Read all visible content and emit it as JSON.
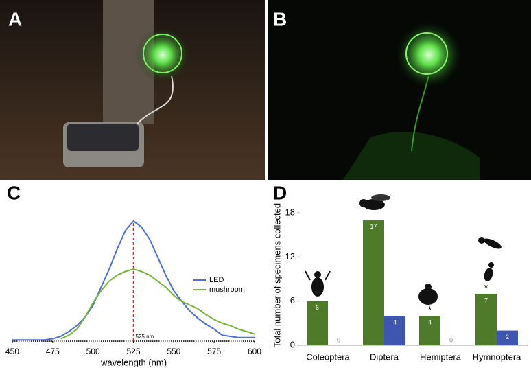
{
  "panels": [
    "A",
    "B",
    "C",
    "D"
  ],
  "chart_data": [
    {
      "type": "line",
      "x_label": "wavelength (nm)",
      "x": [
        450,
        455,
        460,
        465,
        470,
        475,
        480,
        485,
        490,
        495,
        500,
        505,
        510,
        515,
        520,
        525,
        530,
        535,
        540,
        545,
        550,
        555,
        560,
        565,
        570,
        575,
        580,
        585,
        590,
        595,
        600
      ],
      "series": [
        {
          "name": "LED",
          "color": "#4a6fd8",
          "values": [
            0.01,
            0.01,
            0.01,
            0.01,
            0.01,
            0.02,
            0.04,
            0.08,
            0.13,
            0.2,
            0.3,
            0.45,
            0.6,
            0.77,
            0.92,
            1.0,
            0.95,
            0.85,
            0.7,
            0.55,
            0.42,
            0.33,
            0.25,
            0.19,
            0.14,
            0.1,
            0.05,
            0.04,
            0.03,
            0.03,
            0.03
          ]
        },
        {
          "name": "mushroom",
          "color": "#74b63c",
          "values": [
            null,
            null,
            null,
            null,
            null,
            null,
            0.02,
            0.05,
            0.1,
            0.2,
            0.32,
            0.42,
            0.5,
            0.55,
            0.58,
            0.6,
            0.58,
            0.55,
            0.5,
            0.45,
            0.38,
            0.33,
            0.3,
            0.27,
            0.22,
            0.18,
            0.15,
            0.13,
            0.1,
            0.08,
            0.06
          ]
        }
      ],
      "xlim": [
        450,
        600
      ],
      "xticks": [
        450,
        475,
        500,
        525,
        550,
        575,
        600
      ],
      "ylim": [
        0,
        1.1
      ],
      "annotation": {
        "text": "525 nm",
        "x": 525,
        "color": "#d62b2b"
      }
    },
    {
      "type": "bar",
      "y_label": "Total number of specimens collected",
      "categories": [
        "Coleoptera",
        "Diptera",
        "Hemiptera",
        "Hymnoptera"
      ],
      "series": [
        {
          "color": "#4e7a2a",
          "values": [
            6,
            17,
            4,
            7
          ]
        },
        {
          "color": "#3e56b0",
          "values": [
            0,
            4,
            0,
            2
          ]
        }
      ],
      "ylim": [
        0,
        19
      ],
      "yticks": [
        0,
        6,
        12,
        18
      ],
      "annotations": [
        {
          "text": "*",
          "category": "Hemiptera"
        },
        {
          "text": "*",
          "category": "Hymnoptera"
        }
      ]
    }
  ]
}
